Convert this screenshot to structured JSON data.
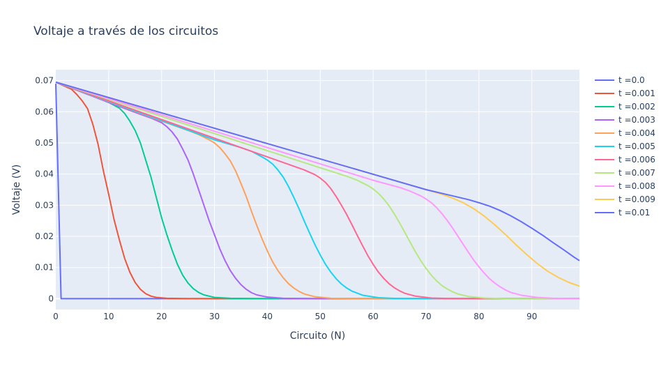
{
  "chart_data": {
    "type": "line",
    "title": "Voltaje a través de los circuitos",
    "xlabel": "Circuito (N)",
    "ylabel": "Voltaje (V)",
    "xlim": [
      0,
      99
    ],
    "ylim": [
      -0.0035,
      0.0735
    ],
    "x_ticks": [
      0,
      10,
      20,
      30,
      40,
      50,
      60,
      70,
      80,
      90
    ],
    "y_ticks": [
      0,
      0.01,
      0.02,
      0.03,
      0.04,
      0.05,
      0.06,
      0.07
    ],
    "x_tick_labels": [
      "0",
      "10",
      "20",
      "30",
      "40",
      "50",
      "60",
      "70",
      "80",
      "90"
    ],
    "y_tick_labels": [
      "0",
      "0.01",
      "0.02",
      "0.03",
      "0.04",
      "0.05",
      "0.06",
      "0.07"
    ],
    "grid": true,
    "legend_position": "right",
    "background": "#e5ecf6",
    "series": [
      {
        "name": "t =0.0",
        "color": "#636efa",
        "points": [
          [
            0,
            0.069
          ],
          [
            1,
            0.0
          ],
          [
            99,
            0.0
          ]
        ]
      },
      {
        "name": "t =0.001",
        "color": "#ef553b",
        "points": [
          [
            0,
            0.0695
          ],
          [
            3,
            0.0672
          ],
          [
            4,
            0.0655
          ],
          [
            5,
            0.0635
          ],
          [
            6,
            0.061
          ],
          [
            7,
            0.056
          ],
          [
            8,
            0.0495
          ],
          [
            9,
            0.041
          ],
          [
            10,
            0.0335
          ],
          [
            11,
            0.0255
          ],
          [
            12,
            0.019
          ],
          [
            13,
            0.013
          ],
          [
            14,
            0.0085
          ],
          [
            15,
            0.0052
          ],
          [
            16,
            0.003
          ],
          [
            17,
            0.0016
          ],
          [
            18,
            0.0008
          ],
          [
            19,
            0.0004
          ],
          [
            21,
            0.0001
          ],
          [
            25,
            0.0
          ],
          [
            99,
            0.0
          ]
        ]
      },
      {
        "name": "t =0.002",
        "color": "#00cc96",
        "points": [
          [
            0,
            0.0695
          ],
          [
            5,
            0.0665
          ],
          [
            10,
            0.063
          ],
          [
            12,
            0.0612
          ],
          [
            13,
            0.0595
          ],
          [
            14,
            0.057
          ],
          [
            15,
            0.054
          ],
          [
            16,
            0.05
          ],
          [
            17,
            0.0445
          ],
          [
            18,
            0.039
          ],
          [
            19,
            0.0325
          ],
          [
            20,
            0.026
          ],
          [
            21,
            0.0205
          ],
          [
            22,
            0.0155
          ],
          [
            23,
            0.011
          ],
          [
            24,
            0.0075
          ],
          [
            25,
            0.005
          ],
          [
            26,
            0.0032
          ],
          [
            27,
            0.002
          ],
          [
            28,
            0.0012
          ],
          [
            30,
            0.0004
          ],
          [
            33,
            0.0001
          ],
          [
            38,
            0.0
          ],
          [
            99,
            0.0
          ]
        ]
      },
      {
        "name": "t =0.003",
        "color": "#ab63fa",
        "points": [
          [
            0,
            0.0695
          ],
          [
            10,
            0.063
          ],
          [
            16,
            0.0592
          ],
          [
            18,
            0.058
          ],
          [
            20,
            0.0565
          ],
          [
            21,
            0.0552
          ],
          [
            22,
            0.0535
          ],
          [
            23,
            0.0512
          ],
          [
            24,
            0.048
          ],
          [
            25,
            0.0445
          ],
          [
            26,
            0.04
          ],
          [
            27,
            0.035
          ],
          [
            28,
            0.03
          ],
          [
            29,
            0.025
          ],
          [
            30,
            0.0205
          ],
          [
            31,
            0.016
          ],
          [
            32,
            0.0122
          ],
          [
            33,
            0.009
          ],
          [
            34,
            0.0065
          ],
          [
            35,
            0.0045
          ],
          [
            36,
            0.003
          ],
          [
            37,
            0.0019
          ],
          [
            38,
            0.0012
          ],
          [
            40,
            0.0005
          ],
          [
            43,
            0.0001
          ],
          [
            48,
            0.0
          ],
          [
            99,
            0.0
          ]
        ]
      },
      {
        "name": "t =0.004",
        "color": "#ffa15a",
        "points": [
          [
            0,
            0.0695
          ],
          [
            20,
            0.057
          ],
          [
            25,
            0.054
          ],
          [
            27,
            0.0527
          ],
          [
            29,
            0.051
          ],
          [
            30,
            0.05
          ],
          [
            31,
            0.0485
          ],
          [
            32,
            0.0465
          ],
          [
            33,
            0.0442
          ],
          [
            34,
            0.041
          ],
          [
            35,
            0.037
          ],
          [
            36,
            0.0328
          ],
          [
            37,
            0.028
          ],
          [
            38,
            0.0235
          ],
          [
            39,
            0.0192
          ],
          [
            40,
            0.0153
          ],
          [
            41,
            0.0118
          ],
          [
            42,
            0.009
          ],
          [
            43,
            0.0067
          ],
          [
            44,
            0.0048
          ],
          [
            45,
            0.0034
          ],
          [
            46,
            0.0023
          ],
          [
            47,
            0.0015
          ],
          [
            49,
            0.0006
          ],
          [
            52,
            0.0001
          ],
          [
            58,
            0.0
          ],
          [
            99,
            0.0
          ]
        ]
      },
      {
        "name": "t =0.005",
        "color": "#19d3f3",
        "points": [
          [
            0,
            0.0695
          ],
          [
            30,
            0.051
          ],
          [
            35,
            0.0485
          ],
          [
            37,
            0.0473
          ],
          [
            39,
            0.0455
          ],
          [
            40,
            0.0445
          ],
          [
            41,
            0.0432
          ],
          [
            42,
            0.0413
          ],
          [
            43,
            0.039
          ],
          [
            44,
            0.036
          ],
          [
            45,
            0.0325
          ],
          [
            46,
            0.0288
          ],
          [
            47,
            0.0248
          ],
          [
            48,
            0.021
          ],
          [
            49,
            0.0173
          ],
          [
            50,
            0.014
          ],
          [
            51,
            0.011
          ],
          [
            52,
            0.0085
          ],
          [
            53,
            0.0064
          ],
          [
            54,
            0.0047
          ],
          [
            55,
            0.0034
          ],
          [
            56,
            0.0024
          ],
          [
            58,
            0.0011
          ],
          [
            61,
            0.0003
          ],
          [
            65,
            0.0
          ],
          [
            99,
            0.0
          ]
        ]
      },
      {
        "name": "t =0.006",
        "color": "#ff6692",
        "points": [
          [
            0,
            0.0695
          ],
          [
            40,
            0.0455
          ],
          [
            45,
            0.0425
          ],
          [
            47,
            0.0413
          ],
          [
            49,
            0.0398
          ],
          [
            50,
            0.0387
          ],
          [
            51,
            0.0373
          ],
          [
            52,
            0.0353
          ],
          [
            53,
            0.0328
          ],
          [
            54,
            0.03
          ],
          [
            55,
            0.027
          ],
          [
            56,
            0.0237
          ],
          [
            57,
            0.0203
          ],
          [
            58,
            0.017
          ],
          [
            59,
            0.0138
          ],
          [
            60,
            0.011
          ],
          [
            61,
            0.0085
          ],
          [
            62,
            0.0065
          ],
          [
            63,
            0.0048
          ],
          [
            64,
            0.0035
          ],
          [
            65,
            0.0025
          ],
          [
            66,
            0.0017
          ],
          [
            68,
            0.0008
          ],
          [
            71,
            0.0002
          ],
          [
            75,
            0.0
          ],
          [
            99,
            0.0
          ]
        ]
      },
      {
        "name": "t =0.007",
        "color": "#b6e880",
        "points": [
          [
            0,
            0.0695
          ],
          [
            50,
            0.042
          ],
          [
            55,
            0.0393
          ],
          [
            57,
            0.038
          ],
          [
            59,
            0.0363
          ],
          [
            60,
            0.0352
          ],
          [
            61,
            0.0338
          ],
          [
            62,
            0.032
          ],
          [
            63,
            0.0298
          ],
          [
            64,
            0.0272
          ],
          [
            65,
            0.0243
          ],
          [
            66,
            0.0212
          ],
          [
            67,
            0.0181
          ],
          [
            68,
            0.015
          ],
          [
            69,
            0.0122
          ],
          [
            70,
            0.0097
          ],
          [
            71,
            0.0075
          ],
          [
            72,
            0.0057
          ],
          [
            73,
            0.0042
          ],
          [
            74,
            0.0031
          ],
          [
            75,
            0.0022
          ],
          [
            76,
            0.0015
          ],
          [
            78,
            0.0007
          ],
          [
            81,
            0.0002
          ],
          [
            85,
            0.0
          ],
          [
            99,
            0.0
          ]
        ]
      },
      {
        "name": "t =0.008",
        "color": "#ff97ff",
        "points": [
          [
            0,
            0.0695
          ],
          [
            60,
            0.038
          ],
          [
            65,
            0.0357
          ],
          [
            67,
            0.0345
          ],
          [
            69,
            0.033
          ],
          [
            70,
            0.032
          ],
          [
            71,
            0.0308
          ],
          [
            72,
            0.0292
          ],
          [
            73,
            0.0273
          ],
          [
            74,
            0.0251
          ],
          [
            75,
            0.0227
          ],
          [
            76,
            0.0201
          ],
          [
            77,
            0.0175
          ],
          [
            78,
            0.0149
          ],
          [
            79,
            0.0124
          ],
          [
            80,
            0.0102
          ],
          [
            81,
            0.0082
          ],
          [
            82,
            0.0064
          ],
          [
            83,
            0.005
          ],
          [
            84,
            0.0038
          ],
          [
            85,
            0.0028
          ],
          [
            86,
            0.002
          ],
          [
            88,
            0.0011
          ],
          [
            91,
            0.0004
          ],
          [
            94,
            0.0001
          ],
          [
            99,
            0.0
          ]
        ]
      },
      {
        "name": "t =0.009",
        "color": "#fecb52",
        "points": [
          [
            0,
            0.0695
          ],
          [
            70,
            0.035
          ],
          [
            73,
            0.0335
          ],
          [
            75,
            0.0323
          ],
          [
            77,
            0.0308
          ],
          [
            79,
            0.0289
          ],
          [
            81,
            0.0265
          ],
          [
            83,
            0.0237
          ],
          [
            85,
            0.0206
          ],
          [
            87,
            0.0173
          ],
          [
            89,
            0.0142
          ],
          [
            91,
            0.0113
          ],
          [
            93,
            0.0088
          ],
          [
            95,
            0.0068
          ],
          [
            97,
            0.0052
          ],
          [
            99,
            0.004
          ]
        ]
      },
      {
        "name": "t =0.01",
        "color": "#636efa",
        "points": [
          [
            0,
            0.0695
          ],
          [
            70,
            0.035
          ],
          [
            75,
            0.033
          ],
          [
            78,
            0.0318
          ],
          [
            80,
            0.0308
          ],
          [
            82,
            0.0297
          ],
          [
            84,
            0.0283
          ],
          [
            86,
            0.0266
          ],
          [
            88,
            0.0247
          ],
          [
            90,
            0.0226
          ],
          [
            92,
            0.0204
          ],
          [
            94,
            0.018
          ],
          [
            96,
            0.0157
          ],
          [
            98,
            0.0133
          ],
          [
            99,
            0.0122
          ]
        ]
      }
    ]
  }
}
